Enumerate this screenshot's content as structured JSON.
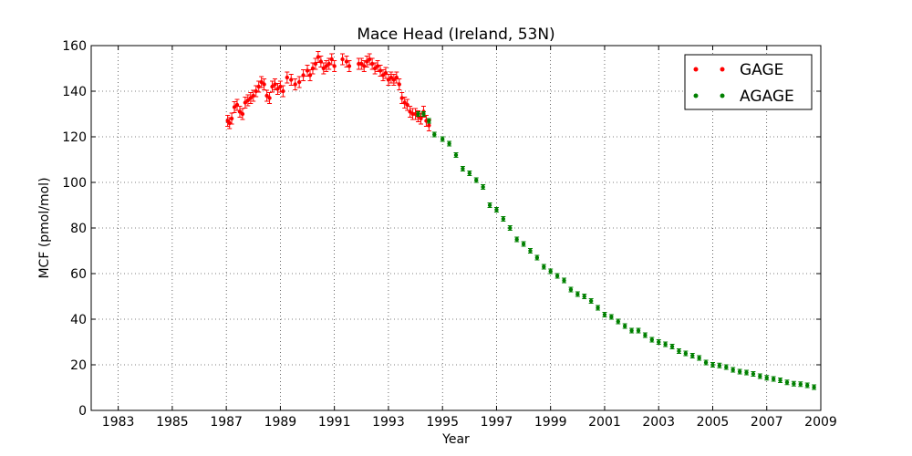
{
  "chart_data": {
    "type": "scatter",
    "title": "Mace Head (Ireland, 53N)",
    "xlabel": "Year",
    "ylabel": "MCF (pmol/mol)",
    "xlim": [
      1982,
      2009
    ],
    "ylim": [
      0,
      160
    ],
    "xticks": [
      1983,
      1985,
      1987,
      1989,
      1991,
      1993,
      1995,
      1997,
      1999,
      2001,
      2003,
      2005,
      2007,
      2009
    ],
    "yticks": [
      0,
      20,
      40,
      60,
      80,
      100,
      120,
      140,
      160
    ],
    "grid": true,
    "legend_position": "top-right",
    "series": [
      {
        "name": "GAGE",
        "color": "#ff0000",
        "error_bars": true,
        "points": [
          [
            1987.05,
            127
          ],
          [
            1987.12,
            126
          ],
          [
            1987.2,
            128
          ],
          [
            1987.3,
            133
          ],
          [
            1987.4,
            134
          ],
          [
            1987.5,
            131
          ],
          [
            1987.6,
            130
          ],
          [
            1987.7,
            135
          ],
          [
            1987.8,
            136
          ],
          [
            1987.9,
            137
          ],
          [
            1988.0,
            138
          ],
          [
            1988.1,
            140
          ],
          [
            1988.2,
            142
          ],
          [
            1988.3,
            144
          ],
          [
            1988.4,
            143
          ],
          [
            1988.5,
            138
          ],
          [
            1988.6,
            137
          ],
          [
            1988.7,
            142
          ],
          [
            1988.8,
            143
          ],
          [
            1988.9,
            141
          ],
          [
            1989.0,
            142
          ],
          [
            1989.1,
            140
          ],
          [
            1989.25,
            146
          ],
          [
            1989.4,
            145
          ],
          [
            1989.55,
            143
          ],
          [
            1989.7,
            144
          ],
          [
            1989.85,
            147
          ],
          [
            1990.0,
            149
          ],
          [
            1990.1,
            147
          ],
          [
            1990.2,
            150
          ],
          [
            1990.3,
            152
          ],
          [
            1990.4,
            155
          ],
          [
            1990.5,
            153
          ],
          [
            1990.6,
            150
          ],
          [
            1990.7,
            151
          ],
          [
            1990.8,
            152
          ],
          [
            1990.9,
            154
          ],
          [
            1991.0,
            151
          ],
          [
            1991.3,
            154
          ],
          [
            1991.45,
            153
          ],
          [
            1991.55,
            151
          ],
          [
            1991.9,
            152
          ],
          [
            1992.0,
            152
          ],
          [
            1992.1,
            151
          ],
          [
            1992.2,
            153
          ],
          [
            1992.3,
            154
          ],
          [
            1992.4,
            152
          ],
          [
            1992.5,
            150
          ],
          [
            1992.6,
            151
          ],
          [
            1992.7,
            149
          ],
          [
            1992.8,
            147
          ],
          [
            1992.9,
            148
          ],
          [
            1993.0,
            145
          ],
          [
            1993.1,
            146
          ],
          [
            1993.2,
            145
          ],
          [
            1993.3,
            146
          ],
          [
            1993.4,
            143
          ],
          [
            1993.5,
            137
          ],
          [
            1993.6,
            135
          ],
          [
            1993.7,
            134
          ],
          [
            1993.8,
            131
          ],
          [
            1993.9,
            130
          ],
          [
            1994.0,
            130
          ],
          [
            1994.1,
            129
          ],
          [
            1994.2,
            128
          ],
          [
            1994.3,
            131
          ],
          [
            1994.4,
            127
          ],
          [
            1994.5,
            125
          ]
        ]
      },
      {
        "name": "AGAGE",
        "color": "#008000",
        "error_bars": true,
        "points": [
          [
            1994.1,
            130
          ],
          [
            1994.3,
            130
          ],
          [
            1994.5,
            127
          ],
          [
            1994.7,
            121
          ],
          [
            1995.0,
            119
          ],
          [
            1995.25,
            117
          ],
          [
            1995.5,
            112
          ],
          [
            1995.75,
            106
          ],
          [
            1996.0,
            104
          ],
          [
            1996.25,
            101
          ],
          [
            1996.5,
            98
          ],
          [
            1996.75,
            90
          ],
          [
            1997.0,
            88
          ],
          [
            1997.25,
            84
          ],
          [
            1997.5,
            80
          ],
          [
            1997.75,
            75
          ],
          [
            1998.0,
            73
          ],
          [
            1998.25,
            70
          ],
          [
            1998.5,
            67
          ],
          [
            1998.75,
            63
          ],
          [
            1999.0,
            61
          ],
          [
            1999.25,
            59
          ],
          [
            1999.5,
            57
          ],
          [
            1999.75,
            53
          ],
          [
            2000.0,
            51
          ],
          [
            2000.25,
            50
          ],
          [
            2000.5,
            48
          ],
          [
            2000.75,
            45
          ],
          [
            2001.0,
            42
          ],
          [
            2001.25,
            41
          ],
          [
            2001.5,
            39
          ],
          [
            2001.75,
            37
          ],
          [
            2002.0,
            35
          ],
          [
            2002.25,
            35
          ],
          [
            2002.5,
            33
          ],
          [
            2002.75,
            31
          ],
          [
            2003.0,
            30
          ],
          [
            2003.25,
            29
          ],
          [
            2003.5,
            28
          ],
          [
            2003.75,
            26
          ],
          [
            2004.0,
            25
          ],
          [
            2004.25,
            24
          ],
          [
            2004.5,
            23
          ],
          [
            2004.75,
            21
          ],
          [
            2005.0,
            20
          ],
          [
            2005.25,
            19.7
          ],
          [
            2005.5,
            19
          ],
          [
            2005.75,
            17.8
          ],
          [
            2006.0,
            17
          ],
          [
            2006.25,
            16.6
          ],
          [
            2006.5,
            16
          ],
          [
            2006.75,
            15
          ],
          [
            2007.0,
            14.3
          ],
          [
            2007.25,
            13.8
          ],
          [
            2007.5,
            13.2
          ],
          [
            2007.75,
            12.3
          ],
          [
            2008.0,
            11.7
          ],
          [
            2008.25,
            11.5
          ],
          [
            2008.5,
            11
          ],
          [
            2008.75,
            10.2
          ]
        ]
      }
    ]
  }
}
